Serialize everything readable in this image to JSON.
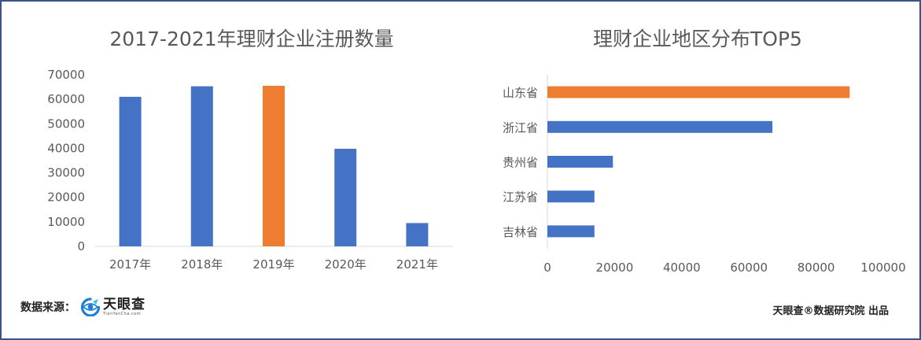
{
  "chart_data": [
    {
      "type": "bar",
      "title": "2017-2021年理财企业注册数量",
      "categories": [
        "2017年",
        "2018年",
        "2019年",
        "2020年",
        "2021年"
      ],
      "values": [
        61000,
        65300,
        65500,
        39800,
        9500
      ],
      "highlight_index": 2,
      "yticks": [
        "0",
        "10000",
        "20000",
        "30000",
        "40000",
        "50000",
        "60000",
        "70000"
      ],
      "ylim": [
        0,
        70000
      ],
      "grid": false
    },
    {
      "type": "bar",
      "orientation": "horizontal",
      "title": "理财企业地区分布TOP5",
      "categories": [
        "山东省",
        "浙江省",
        "贵州省",
        "江苏省",
        "吉林省"
      ],
      "values": [
        90000,
        67000,
        19500,
        14000,
        14000
      ],
      "highlight_index": 0,
      "xticks": [
        "0",
        "20000",
        "40000",
        "60000",
        "80000",
        "100000"
      ],
      "xlim": [
        0,
        100000
      ],
      "grid": false
    }
  ],
  "colors": {
    "bar": "#4472c4",
    "highlight": "#ed7d31",
    "axis": "#d9d9d9",
    "frame": "#3a5488"
  },
  "footer": {
    "source_label": "数据来源：",
    "logo_text": "天眼查",
    "logo_subtext": "TianYanCha.com",
    "credit": "天眼查®数据研究院 出品"
  }
}
